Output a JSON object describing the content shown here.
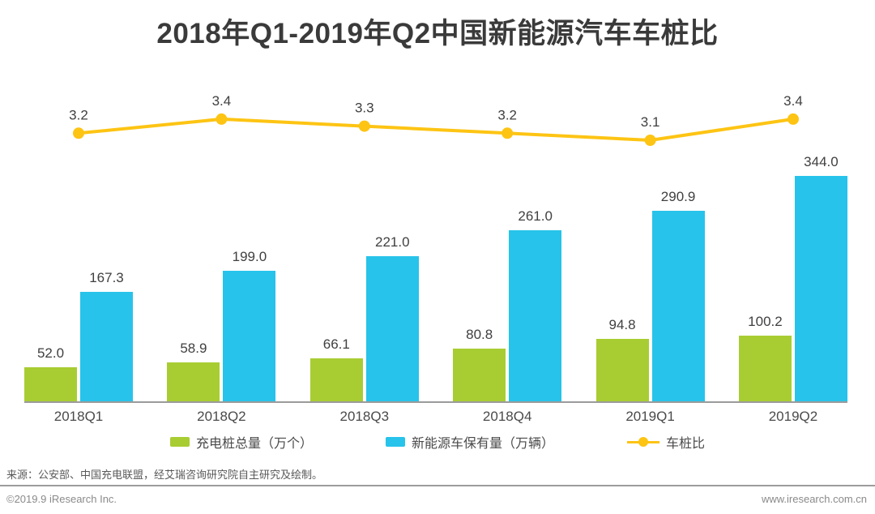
{
  "title": "2018年Q1-2019年Q2中国新能源汽车车桩比",
  "chart_data": {
    "type": "bar",
    "subtype": "grouped-bars-with-line",
    "categories": [
      "2018Q1",
      "2018Q2",
      "2018Q3",
      "2018Q4",
      "2019Q1",
      "2019Q2"
    ],
    "series": [
      {
        "name": "充电桩总量（万个）",
        "type": "bar",
        "color": "#a8cd32",
        "values": [
          52.0,
          58.9,
          66.1,
          80.8,
          94.8,
          100.2
        ]
      },
      {
        "name": "新能源车保有量（万辆）",
        "type": "bar",
        "color": "#27c3ea",
        "values": [
          167.3,
          199.0,
          221.0,
          261.0,
          290.9,
          344.0
        ]
      },
      {
        "name": "车桩比",
        "type": "line",
        "color": "#fdc413",
        "values": [
          3.2,
          3.4,
          3.3,
          3.2,
          3.1,
          3.4
        ]
      }
    ],
    "title": "2018年Q1-2019年Q2中国新能源汽车车桩比",
    "xlabel": "",
    "ylabel": "",
    "ylim_bars": [
      0,
      380
    ],
    "ylim_line": [
      3.0,
      3.5
    ],
    "grid": false,
    "legend_position": "bottom",
    "data_labels": true
  },
  "colors": {
    "bar_green": "#a8cd32",
    "bar_blue": "#27c3ea",
    "line_yellow": "#fdc413",
    "label_text": "#404040",
    "axis_line": "#9b9b9b"
  },
  "footer": {
    "source": "来源：公安部、中国充电联盟，经艾瑞咨询研究院自主研究及绘制。",
    "copyright": "©2019.9  iResearch Inc.",
    "website": "www.iresearch.com.cn"
  }
}
